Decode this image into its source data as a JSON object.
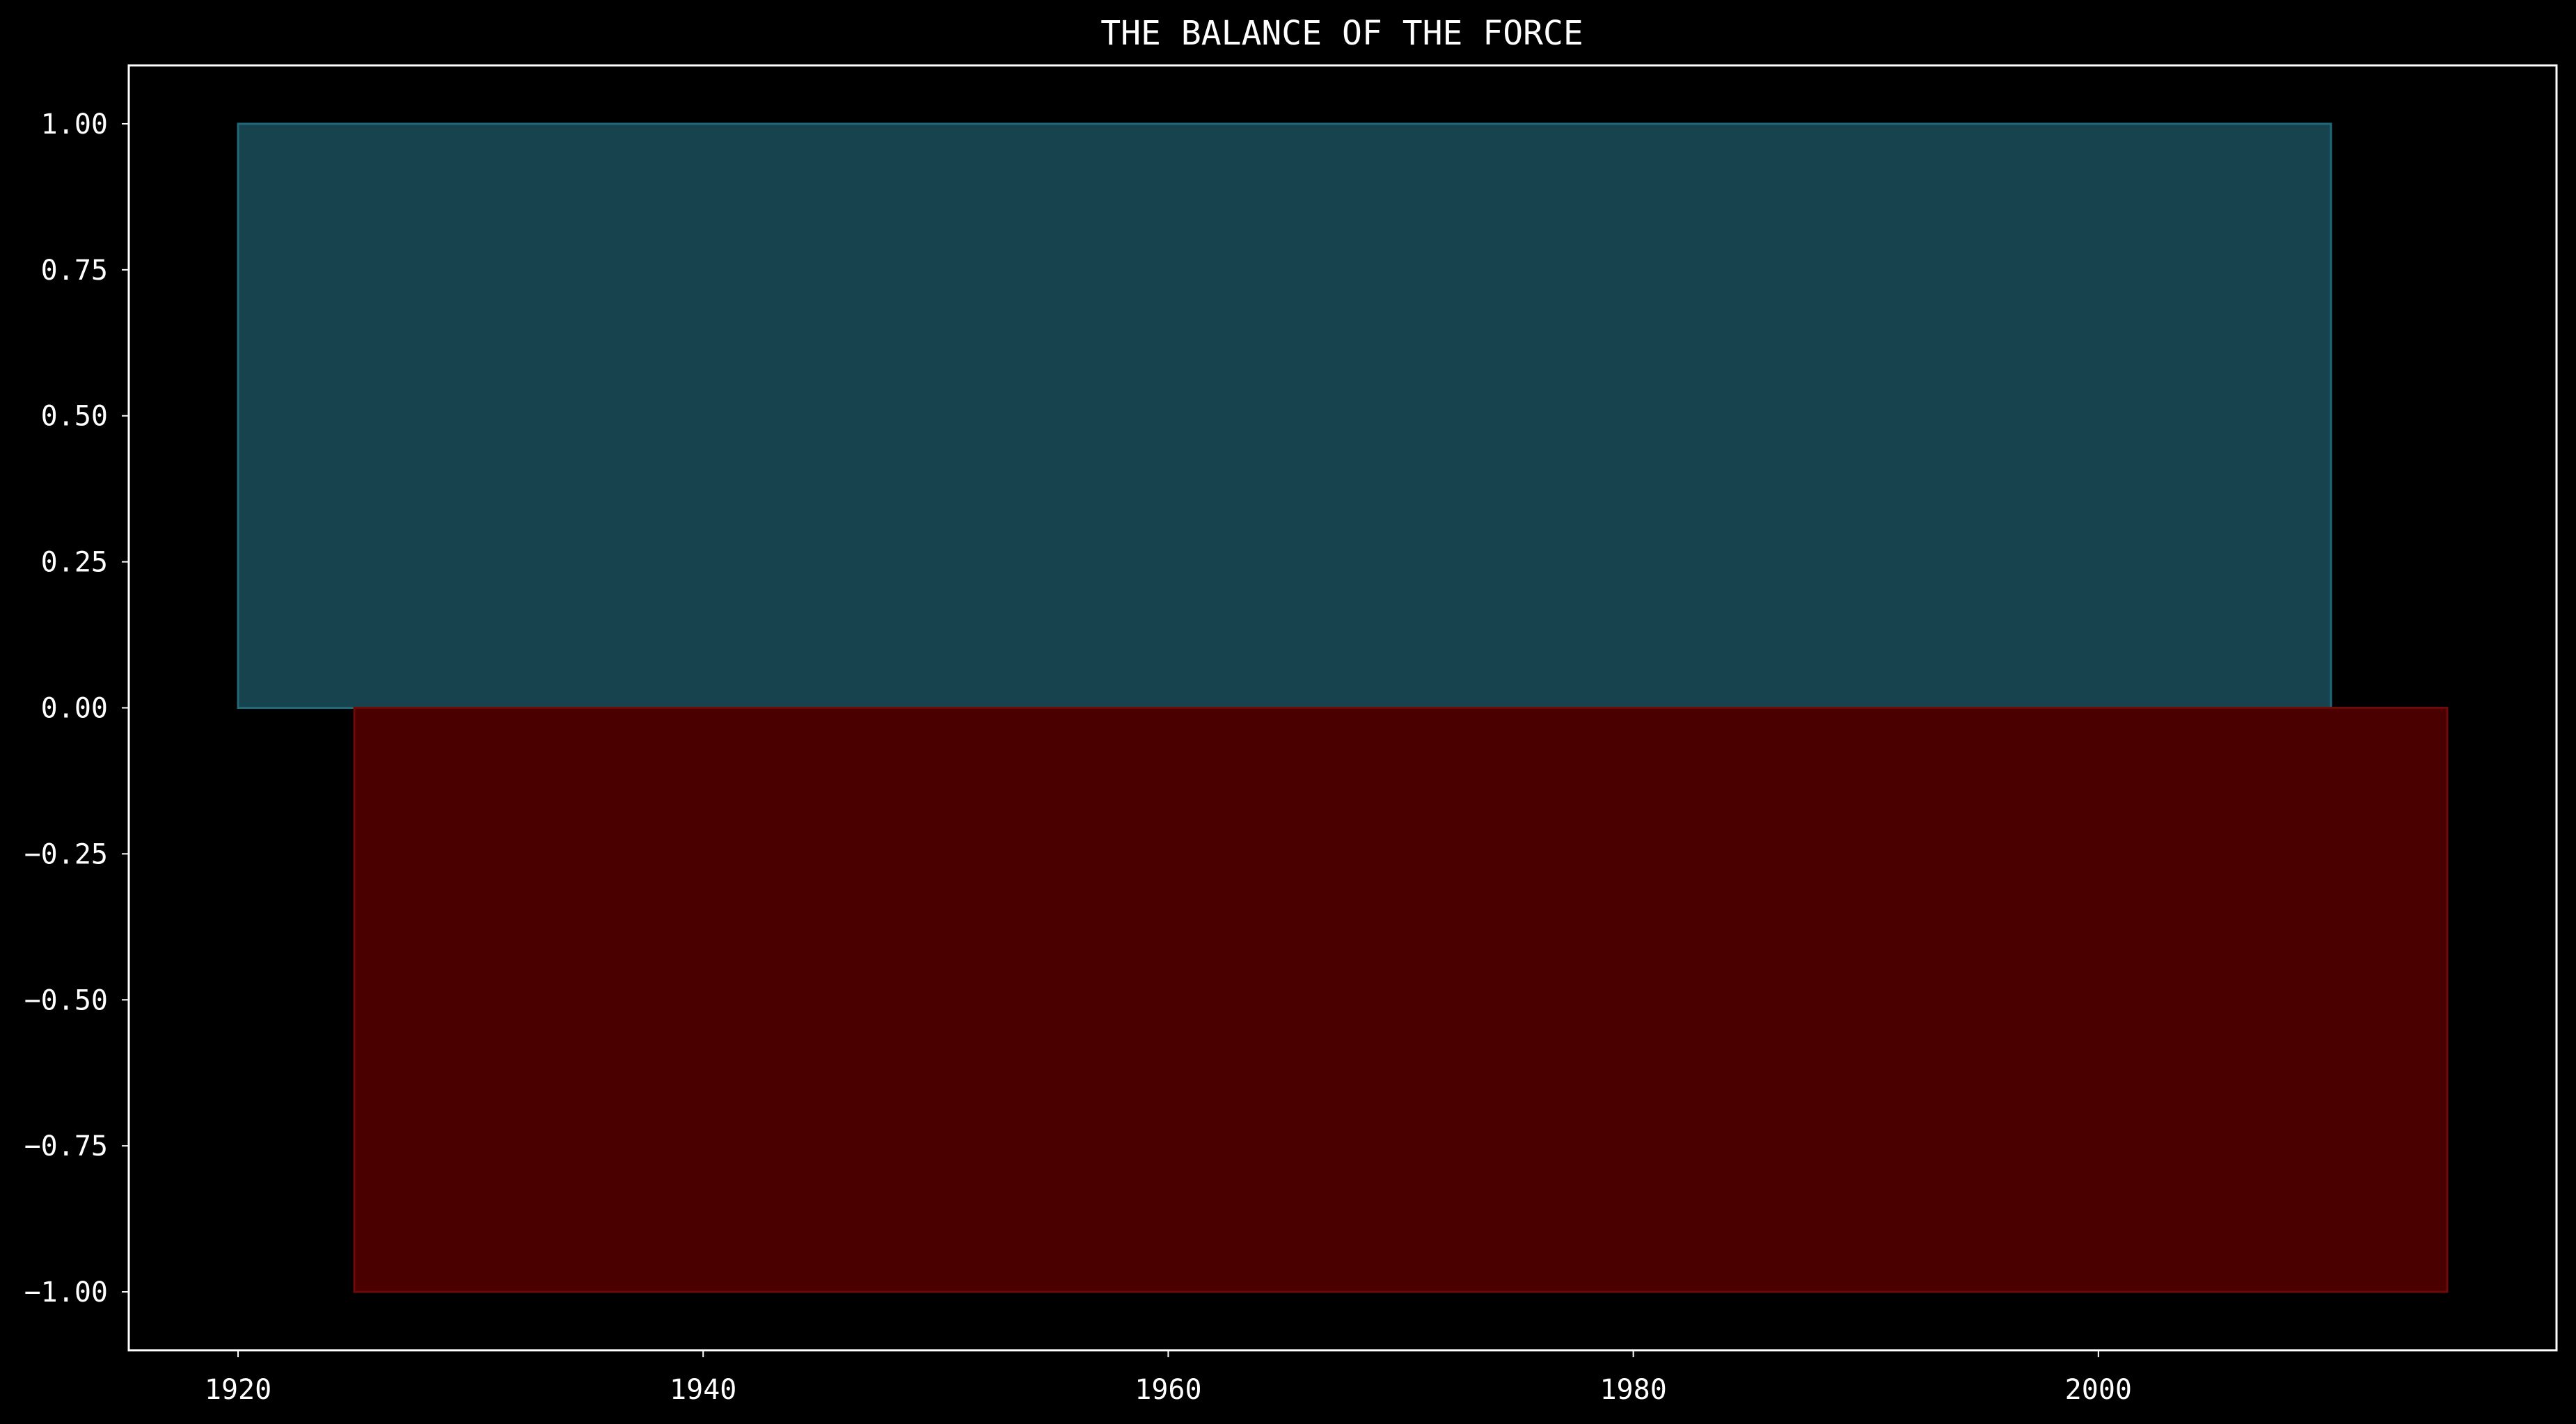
{
  "chart_data": {
    "type": "bar",
    "title": "THE BALANCE OF THE FORCE",
    "xlabel": "",
    "ylabel": "",
    "xlim": [
      1915.3,
      2019.7
    ],
    "ylim": [
      -1.1,
      1.1
    ],
    "x_ticks": [
      1920,
      1940,
      1960,
      1980,
      2000
    ],
    "y_ticks": [
      1.0,
      0.75,
      0.5,
      0.25,
      0.0,
      -0.25,
      -0.5,
      -0.75,
      -1.0
    ],
    "x_tick_labels": [
      "1920",
      "1940",
      "1960",
      "1980",
      "2000"
    ],
    "y_tick_labels": [
      "1.00",
      "0.75",
      "0.50",
      "0.25",
      "0.00",
      "−0.25",
      "−0.50",
      "−0.75",
      "−1.00"
    ],
    "grid": false,
    "legend": "none",
    "bars": [
      {
        "x_start": 1920,
        "x_end": 2010,
        "y_bottom": 0.0,
        "y_top": 1.0,
        "fill": "#17434f",
        "edge": "#1f6a7a"
      },
      {
        "x_start": 1925,
        "x_end": 2015,
        "y_bottom": -1.0,
        "y_top": 0.0,
        "fill": "#4b0000",
        "edge": "#6e0a0a"
      }
    ],
    "colors": {
      "background": "#000000",
      "axes": "#ffffff",
      "text": "#ffffff"
    }
  }
}
